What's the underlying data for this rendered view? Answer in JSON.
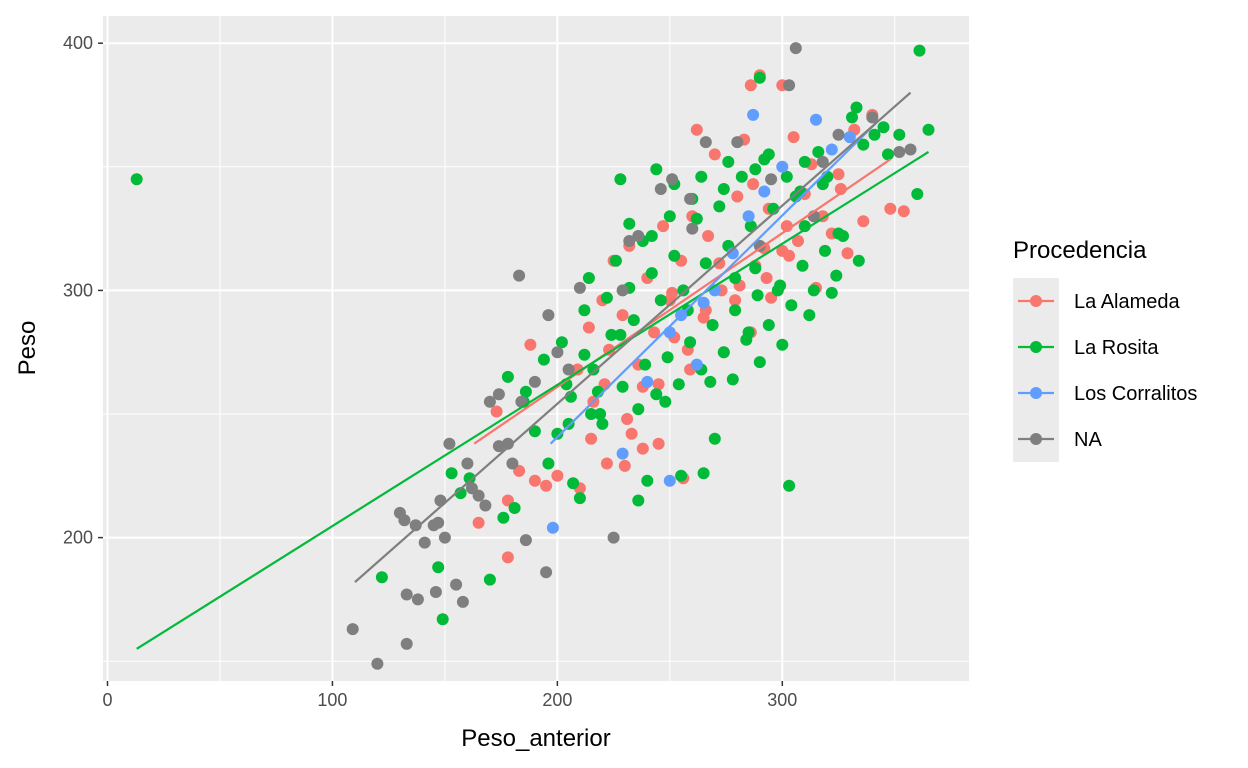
{
  "chart_data": {
    "type": "scatter",
    "title": "",
    "xlabel": "Peso_anterior",
    "ylabel": "Peso",
    "xlim": [
      -2,
      383
    ],
    "ylim": [
      142,
      411
    ],
    "x_ticks": [
      0,
      100,
      200,
      300
    ],
    "y_ticks": [
      200,
      300,
      400
    ],
    "x_minor_ticks": [
      50,
      150,
      250,
      350
    ],
    "y_minor_ticks": [
      150,
      250,
      350
    ],
    "grid": true,
    "legend": {
      "title": "Procedencia",
      "position": "right"
    },
    "series": [
      {
        "name": "La Alameda",
        "color": "#F8766D",
        "fit_line": [
          [
            163,
            238
          ],
          [
            348,
            353
          ]
        ],
        "points": [
          [
            165,
            206
          ],
          [
            178,
            192
          ],
          [
            173,
            251
          ],
          [
            178,
            215
          ],
          [
            183,
            227
          ],
          [
            188,
            278
          ],
          [
            190,
            223
          ],
          [
            195,
            221
          ],
          [
            200,
            225
          ],
          [
            210,
            220
          ],
          [
            215,
            240
          ],
          [
            222,
            230
          ],
          [
            230,
            229
          ],
          [
            233,
            242
          ],
          [
            238,
            236
          ],
          [
            245,
            238
          ],
          [
            250,
            296
          ],
          [
            256,
            224
          ],
          [
            262,
            365
          ],
          [
            270,
            355
          ],
          [
            283,
            361
          ],
          [
            286,
            383
          ],
          [
            290,
            387
          ],
          [
            292,
            317
          ],
          [
            300,
            383
          ],
          [
            305,
            362
          ],
          [
            313,
            351
          ],
          [
            325,
            347
          ],
          [
            332,
            365
          ],
          [
            340,
            371
          ],
          [
            348,
            333
          ],
          [
            354,
            332
          ],
          [
            220,
            296
          ],
          [
            225,
            312
          ],
          [
            232,
            318
          ],
          [
            240,
            305
          ],
          [
            247,
            326
          ],
          [
            255,
            312
          ],
          [
            260,
            330
          ],
          [
            267,
            322
          ],
          [
            273,
            300
          ],
          [
            280,
            338
          ],
          [
            287,
            343
          ],
          [
            294,
            333
          ],
          [
            302,
            326
          ],
          [
            310,
            339
          ],
          [
            318,
            330
          ],
          [
            326,
            341
          ],
          [
            214,
            285
          ],
          [
            221,
            262
          ],
          [
            229,
            290
          ],
          [
            236,
            270
          ],
          [
            243,
            283
          ],
          [
            251,
            299
          ],
          [
            258,
            276
          ],
          [
            265,
            289
          ],
          [
            272,
            311
          ],
          [
            279,
            296
          ],
          [
            286,
            283
          ],
          [
            293,
            305
          ],
          [
            300,
            316
          ],
          [
            307,
            320
          ],
          [
            315,
            301
          ],
          [
            322,
            323
          ],
          [
            329,
            315
          ],
          [
            336,
            328
          ],
          [
            209,
            268
          ],
          [
            216,
            255
          ],
          [
            223,
            276
          ],
          [
            231,
            248
          ],
          [
            238,
            261
          ],
          [
            245,
            262
          ],
          [
            252,
            281
          ],
          [
            259,
            268
          ],
          [
            266,
            292
          ],
          [
            274,
            275
          ],
          [
            281,
            302
          ],
          [
            288,
            310
          ],
          [
            295,
            297
          ],
          [
            303,
            314
          ]
        ]
      },
      {
        "name": "La Rosita",
        "color": "#00BA38",
        "fit_line": [
          [
            13,
            155
          ],
          [
            365,
            356
          ]
        ],
        "points": [
          [
            13,
            345
          ],
          [
            122,
            184
          ],
          [
            147,
            188
          ],
          [
            149,
            167
          ],
          [
            153,
            226
          ],
          [
            157,
            218
          ],
          [
            161,
            224
          ],
          [
            170,
            183
          ],
          [
            176,
            208
          ],
          [
            178,
            265
          ],
          [
            181,
            212
          ],
          [
            185,
            255
          ],
          [
            190,
            243
          ],
          [
            196,
            230
          ],
          [
            200,
            242
          ],
          [
            205,
            246
          ],
          [
            207,
            222
          ],
          [
            210,
            216
          ],
          [
            215,
            250
          ],
          [
            220,
            246
          ],
          [
            228,
            345
          ],
          [
            236,
            215
          ],
          [
            240,
            223
          ],
          [
            244,
            349
          ],
          [
            255,
            225
          ],
          [
            265,
            226
          ],
          [
            270,
            240
          ],
          [
            279,
            305
          ],
          [
            285,
            283
          ],
          [
            290,
            386
          ],
          [
            294,
            355
          ],
          [
            298,
            300
          ],
          [
            303,
            221
          ],
          [
            310,
            326
          ],
          [
            316,
            356
          ],
          [
            320,
            346
          ],
          [
            325,
            323
          ],
          [
            331,
            370
          ],
          [
            336,
            359
          ],
          [
            341,
            363
          ],
          [
            347,
            355
          ],
          [
            352,
            363
          ],
          [
            361,
            397
          ],
          [
            365,
            365
          ],
          [
            360,
            339
          ],
          [
            345,
            366
          ],
          [
            333,
            374
          ],
          [
            318,
            343
          ],
          [
            306,
            338
          ],
          [
            292,
            353
          ],
          [
            282,
            346
          ],
          [
            272,
            334
          ],
          [
            262,
            329
          ],
          [
            252,
            314
          ],
          [
            242,
            307
          ],
          [
            232,
            301
          ],
          [
            222,
            297
          ],
          [
            212,
            292
          ],
          [
            202,
            279
          ],
          [
            194,
            272
          ],
          [
            186,
            259
          ],
          [
            216,
            268
          ],
          [
            224,
            282
          ],
          [
            234,
            288
          ],
          [
            246,
            296
          ],
          [
            256,
            300
          ],
          [
            266,
            311
          ],
          [
            276,
            318
          ],
          [
            286,
            326
          ],
          [
            296,
            333
          ],
          [
            308,
            340
          ],
          [
            219,
            250
          ],
          [
            229,
            261
          ],
          [
            239,
            270
          ],
          [
            249,
            273
          ],
          [
            259,
            279
          ],
          [
            269,
            286
          ],
          [
            279,
            292
          ],
          [
            289,
            298
          ],
          [
            299,
            302
          ],
          [
            309,
            310
          ],
          [
            319,
            316
          ],
          [
            327,
            322
          ],
          [
            214,
            305
          ],
          [
            226,
            312
          ],
          [
            238,
            320
          ],
          [
            250,
            330
          ],
          [
            260,
            337
          ],
          [
            274,
            341
          ],
          [
            288,
            349
          ],
          [
            302,
            346
          ],
          [
            204,
            262
          ],
          [
            212,
            274
          ],
          [
            244,
            258
          ],
          [
            254,
            262
          ],
          [
            264,
            268
          ],
          [
            274,
            275
          ],
          [
            284,
            280
          ],
          [
            294,
            286
          ],
          [
            304,
            294
          ],
          [
            314,
            300
          ],
          [
            324,
            306
          ],
          [
            334,
            312
          ],
          [
            206,
            257
          ],
          [
            218,
            259
          ],
          [
            236,
            252
          ],
          [
            248,
            255
          ],
          [
            268,
            263
          ],
          [
            278,
            264
          ],
          [
            290,
            271
          ],
          [
            300,
            278
          ],
          [
            312,
            290
          ],
          [
            322,
            299
          ],
          [
            232,
            327
          ],
          [
            242,
            322
          ],
          [
            252,
            343
          ],
          [
            264,
            346
          ],
          [
            276,
            352
          ],
          [
            310,
            352
          ],
          [
            228,
            282
          ],
          [
            258,
            292
          ],
          [
            288,
            309
          ]
        ]
      },
      {
        "name": "Los Corralitos",
        "color": "#619CFF",
        "fit_line": [
          [
            197,
            238
          ],
          [
            342,
            368
          ]
        ],
        "points": [
          [
            198,
            204
          ],
          [
            229,
            234
          ],
          [
            240,
            263
          ],
          [
            250,
            223
          ],
          [
            255,
            290
          ],
          [
            262,
            270
          ],
          [
            270,
            300
          ],
          [
            278,
            315
          ],
          [
            285,
            330
          ],
          [
            287,
            371
          ],
          [
            292,
            340
          ],
          [
            300,
            350
          ],
          [
            315,
            369
          ],
          [
            322,
            357
          ],
          [
            330,
            362
          ],
          [
            250,
            283
          ],
          [
            265,
            295
          ]
        ]
      },
      {
        "name": "NA",
        "color": "#7F7F7F",
        "fit_line": [
          [
            110,
            182
          ],
          [
            357,
            380
          ]
        ],
        "points": [
          [
            109,
            163
          ],
          [
            120,
            149
          ],
          [
            130,
            210
          ],
          [
            132,
            207
          ],
          [
            133,
            177
          ],
          [
            133,
            157
          ],
          [
            137,
            205
          ],
          [
            138,
            175
          ],
          [
            141,
            198
          ],
          [
            145,
            205
          ],
          [
            146,
            178
          ],
          [
            147,
            206
          ],
          [
            148,
            215
          ],
          [
            150,
            200
          ],
          [
            152,
            238
          ],
          [
            155,
            181
          ],
          [
            158,
            174
          ],
          [
            160,
            230
          ],
          [
            162,
            220
          ],
          [
            165,
            217
          ],
          [
            168,
            213
          ],
          [
            170,
            255
          ],
          [
            174,
            258
          ],
          [
            178,
            238
          ],
          [
            183,
            306
          ],
          [
            184,
            255
          ],
          [
            186,
            199
          ],
          [
            190,
            263
          ],
          [
            195,
            186
          ],
          [
            196,
            290
          ],
          [
            200,
            275
          ],
          [
            210,
            301
          ],
          [
            225,
            200
          ],
          [
            232,
            320
          ],
          [
            246,
            341
          ],
          [
            251,
            345
          ],
          [
            259,
            337
          ],
          [
            266,
            360
          ],
          [
            280,
            360
          ],
          [
            295,
            345
          ],
          [
            303,
            383
          ],
          [
            306,
            398
          ],
          [
            318,
            352
          ],
          [
            325,
            363
          ],
          [
            340,
            370
          ],
          [
            352,
            356
          ],
          [
            357,
            357
          ],
          [
            236,
            322
          ],
          [
            229,
            300
          ],
          [
            260,
            325
          ],
          [
            290,
            318
          ],
          [
            314,
            330
          ],
          [
            174,
            237
          ],
          [
            180,
            230
          ],
          [
            205,
            268
          ]
        ]
      }
    ]
  }
}
